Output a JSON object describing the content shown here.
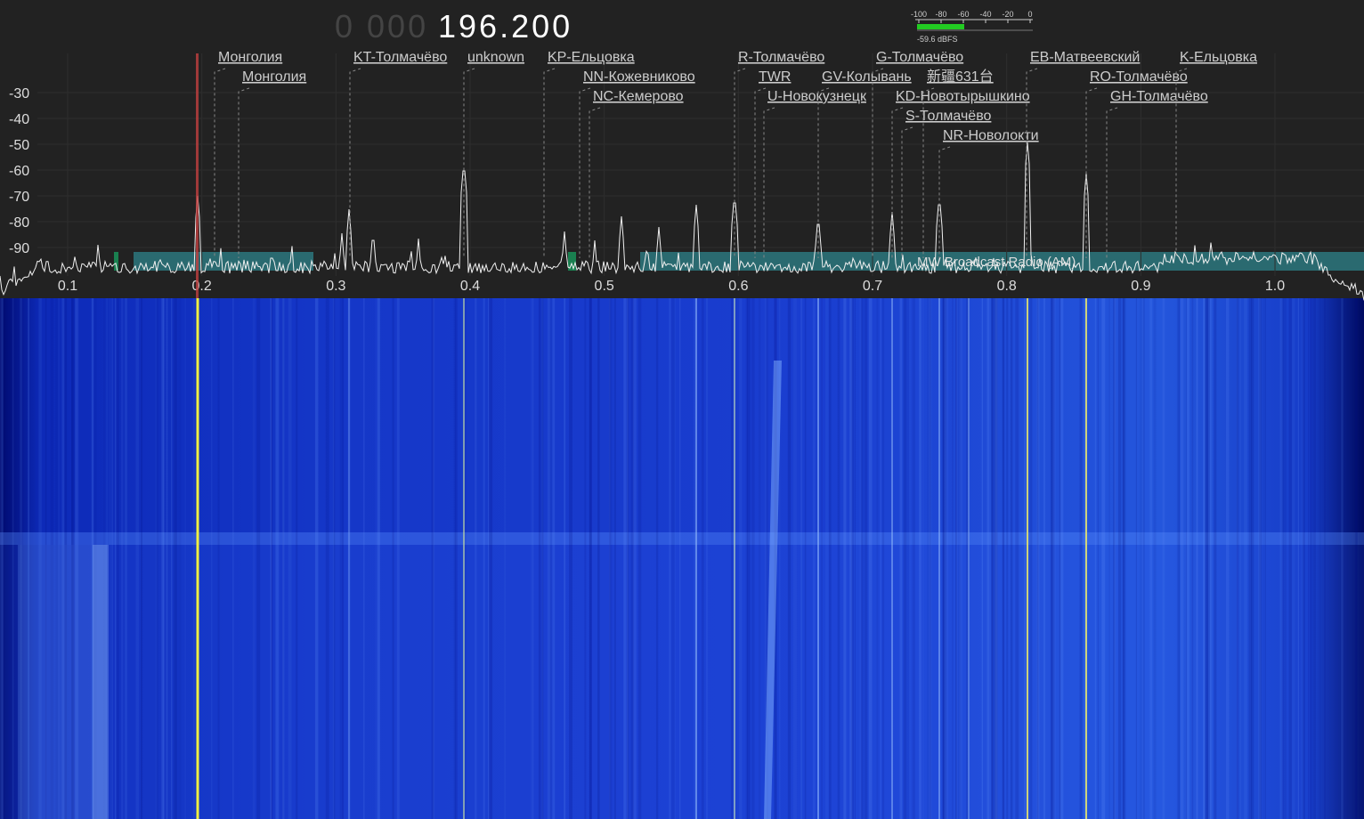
{
  "frequency": {
    "prefix": "0 000",
    "main": "196.200"
  },
  "level_meter": {
    "ticks": [
      "-100",
      "-80",
      "-60",
      "-40",
      "-20",
      "0"
    ],
    "reading": "-59.6 dBFS"
  },
  "spectrum": {
    "y_axis_labels": [
      "-30",
      "-40",
      "-50",
      "-60",
      "-70",
      "-80",
      "-90"
    ],
    "x_axis_labels": [
      "0.1",
      "0.2",
      "0.3",
      "0.4",
      "0.5",
      "0.6",
      "0.7",
      "0.8",
      "0.9",
      "1.0"
    ],
    "stations": [
      "Монголия",
      "Монголия",
      "KT-Толмачёво",
      "unknown",
      "KP-Ельцовка",
      "NN-Кожевниково",
      "NC-Кемерово",
      "R-Толмачёво",
      "TWR",
      "U-Новокузнецк",
      "GV-Колывань",
      "G-Толмачёво",
      "KD-Новотырышкино",
      "S-Толмачёво",
      "新疆631台",
      "NR-Новолокти",
      "EB-Матвеевский",
      "RO-Толмачёво",
      "GH-Толмачёво",
      "K-Ельцовка"
    ],
    "band_label": "MW Broadcast Radio (AM)"
  }
}
